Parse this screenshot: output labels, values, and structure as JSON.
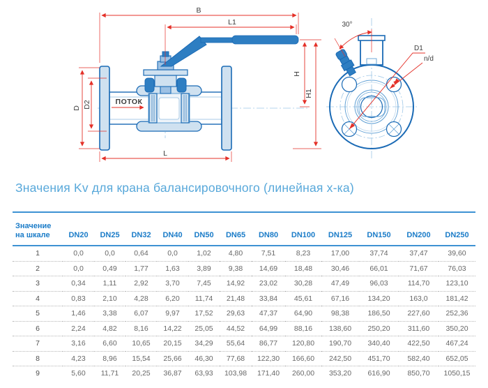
{
  "section_title": "Значения Kv для крана балансировочного (линейная х-ка)",
  "drawing": {
    "flow_label": "ПОТОК",
    "dim_labels": {
      "B": "B",
      "L1": "L1",
      "H": "H",
      "H1": "H1",
      "D": "D",
      "D2": "D2",
      "L": "L"
    },
    "angle_label": "30°",
    "bolt_labels": {
      "d1": "D1",
      "nd": "n/d"
    },
    "colors": {
      "outline_blue": "#1a6ab5",
      "fill_light": "#cfe1f0",
      "fill_medium": "#2e7ec2",
      "dimension_red": "#e43028",
      "centerline_blue": "#9fc7e7",
      "title_blue": "#58a8da",
      "table_header_blue": "#1b7cc8",
      "rule_blue": "#3d92d3",
      "value_gray": "#676767"
    }
  },
  "table": {
    "scale_header": [
      "Значение",
      "на шкале"
    ],
    "dn_headers": [
      "DN20",
      "DN25",
      "DN32",
      "DN40",
      "DN50",
      "DN65",
      "DN80",
      "DN100",
      "DN125",
      "DN150",
      "DN200",
      "DN250"
    ],
    "rows": [
      {
        "scale": "1",
        "values": [
          "0,0",
          "0,0",
          "0,64",
          "0,0",
          "1,02",
          "4,80",
          "7,51",
          "8,23",
          "17,00",
          "37,74",
          "37,47",
          "39,60"
        ]
      },
      {
        "scale": "2",
        "values": [
          "0,0",
          "0,49",
          "1,77",
          "1,63",
          "3,89",
          "9,38",
          "14,69",
          "18,48",
          "30,46",
          "66,01",
          "71,67",
          "76,03"
        ]
      },
      {
        "scale": "3",
        "values": [
          "0,34",
          "1,11",
          "2,92",
          "3,70",
          "7,45",
          "14,92",
          "23,02",
          "30,28",
          "47,49",
          "96,03",
          "114,70",
          "123,10"
        ]
      },
      {
        "scale": "4",
        "values": [
          "0,83",
          "2,10",
          "4,28",
          "6,20",
          "11,74",
          "21,48",
          "33,84",
          "45,61",
          "67,16",
          "134,20",
          "163,0",
          "181,42"
        ]
      },
      {
        "scale": "5",
        "values": [
          "1,46",
          "3,38",
          "6,07",
          "9,97",
          "17,52",
          "29,63",
          "47,37",
          "64,90",
          "98,38",
          "186,50",
          "227,60",
          "252,36"
        ]
      },
      {
        "scale": "6",
        "values": [
          "2,24",
          "4,82",
          "8,16",
          "14,22",
          "25,05",
          "44,52",
          "64,99",
          "88,16",
          "138,60",
          "250,20",
          "311,60",
          "350,20"
        ]
      },
      {
        "scale": "7",
        "values": [
          "3,16",
          "6,60",
          "10,65",
          "20,15",
          "34,29",
          "55,64",
          "86,77",
          "120,80",
          "190,70",
          "340,40",
          "422,50",
          "467,24"
        ]
      },
      {
        "scale": "8",
        "values": [
          "4,23",
          "8,96",
          "15,54",
          "25,66",
          "46,30",
          "77,68",
          "122,30",
          "166,60",
          "242,50",
          "451,70",
          "582,40",
          "652,05"
        ]
      },
      {
        "scale": "9",
        "values": [
          "5,60",
          "11,71",
          "20,25",
          "36,87",
          "63,93",
          "103,98",
          "171,40",
          "260,00",
          "353,20",
          "616,90",
          "850,70",
          "1050,15"
        ]
      }
    ]
  }
}
